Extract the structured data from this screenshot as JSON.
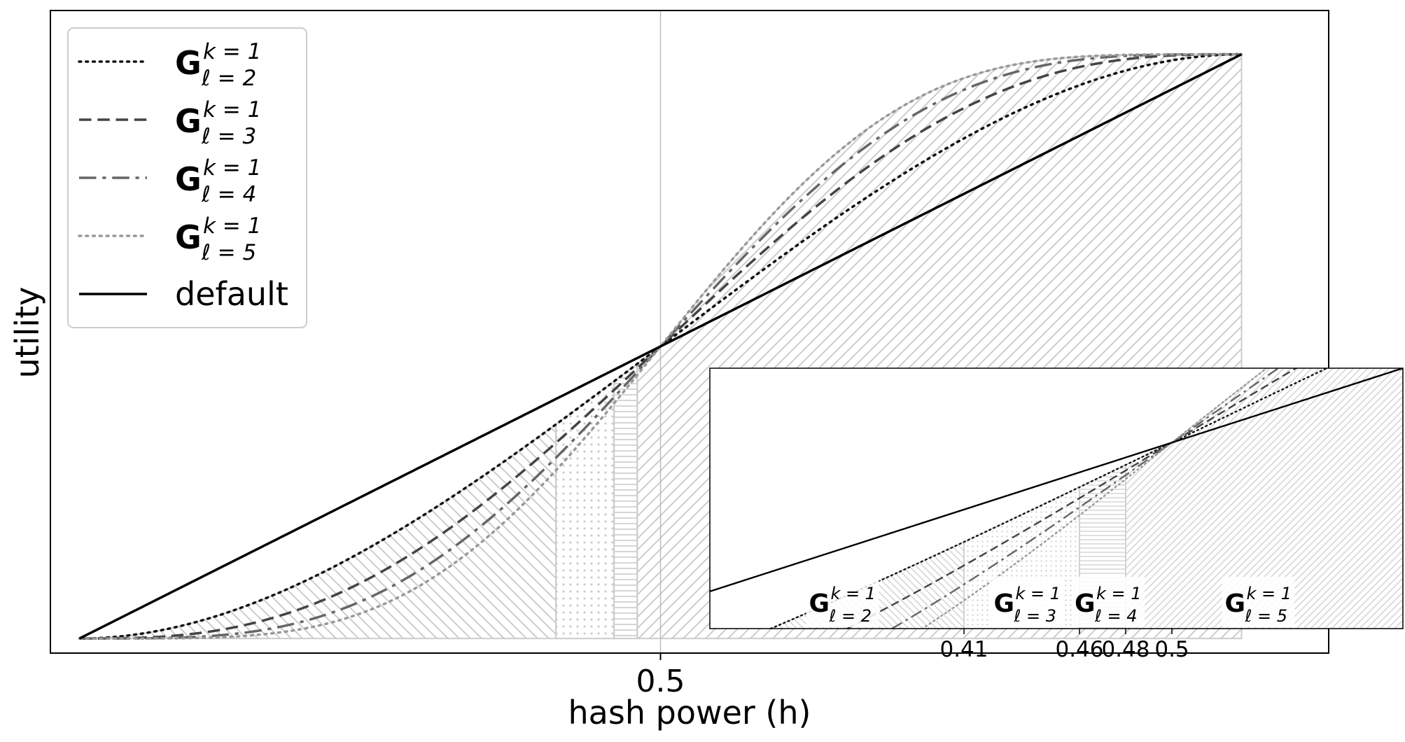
{
  "chart_data": [
    {
      "type": "line",
      "xlabel": "hash power (h)",
      "ylabel": "utility",
      "xlim": [
        -0.025,
        1.075
      ],
      "ylim": [
        -0.025,
        1.075
      ],
      "x_ticks": [
        {
          "value": 0.5,
          "label": "0.5"
        }
      ],
      "y_ticks": [],
      "grid": false,
      "reference_vline": 0.5,
      "legend": {
        "location": "top-left"
      },
      "series": [
        {
          "name_symbol": "G",
          "name_sup": "k = 1",
          "name_sub": "ℓ = 2",
          "style": "dotted",
          "color": "#111111",
          "ell": 2
        },
        {
          "name_symbol": "G",
          "name_sup": "k = 1",
          "name_sub": "ℓ = 3",
          "style": "dashed",
          "color": "#444444",
          "ell": 3
        },
        {
          "name_symbol": "G",
          "name_sup": "k = 1",
          "name_sub": "ℓ = 4",
          "style": "dashdot",
          "color": "#666666",
          "ell": 4
        },
        {
          "name_symbol": "G",
          "name_sup": "k = 1",
          "name_sub": "ℓ = 5",
          "style": "dotted",
          "color": "#999999",
          "ell": 5
        },
        {
          "name": "default",
          "style": "solid",
          "color": "#000000",
          "x": [
            0,
            1
          ],
          "y": [
            0,
            1
          ]
        }
      ],
      "shaded_regions": [
        {
          "from": 0,
          "to": 0.41,
          "pattern": "backslash-hatch",
          "color": "#cccccc"
        },
        {
          "from": 0.41,
          "to": 0.46,
          "pattern": "dots",
          "color": "#cccccc"
        },
        {
          "from": 0.46,
          "to": 0.48,
          "pattern": "horizontal-lines",
          "color": "#cccccc"
        },
        {
          "from": 0.48,
          "to": 1.0,
          "pattern": "slash-hatch",
          "color": "#cccccc"
        }
      ]
    },
    {
      "type": "line",
      "role": "inset",
      "xlim": [
        0.3,
        0.6
      ],
      "ylim": [
        0.25,
        0.6
      ],
      "x_ticks": [
        {
          "value": 0.41,
          "label": "0.41"
        },
        {
          "value": 0.46,
          "label": "0.46"
        },
        {
          "value": 0.48,
          "label": "0.48"
        },
        {
          "value": 0.5,
          "label": "0.5"
        }
      ],
      "region_labels": [
        {
          "symbol": "G",
          "sup": "k = 1",
          "sub": "ℓ = 2",
          "x": 0.355
        },
        {
          "symbol": "G",
          "sup": "k = 1",
          "sub": "ℓ = 3",
          "x": 0.435
        },
        {
          "symbol": "G",
          "sup": "k = 1",
          "sub": "ℓ = 4",
          "x": 0.47
        },
        {
          "symbol": "G",
          "sup": "k = 1",
          "sub": "ℓ = 5",
          "x": 0.535
        }
      ]
    }
  ]
}
